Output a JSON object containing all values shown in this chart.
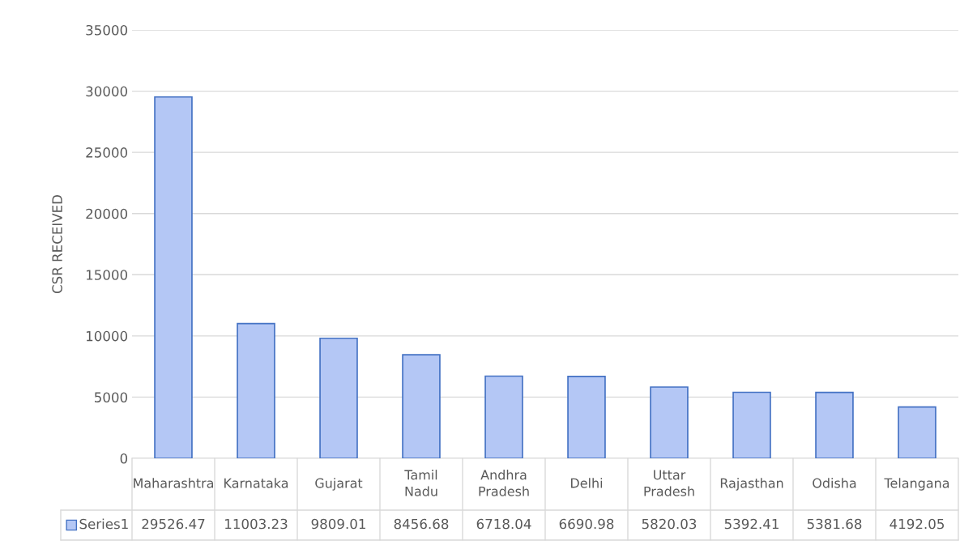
{
  "chart_data": {
    "type": "bar",
    "ylabel": "CSR RECEIVED",
    "categories": [
      "Maharashtra",
      "Karnataka",
      "Gujarat",
      "Tamil Nadu",
      "Andhra Pradesh",
      "Delhi",
      "Uttar Pradesh",
      "Rajasthan",
      "Odisha",
      "Telangana"
    ],
    "series": [
      {
        "name": "Series1",
        "color": "#b4c7f5",
        "values": [
          29526.47,
          11003.23,
          9809.01,
          8456.68,
          6718.04,
          6690.98,
          5820.03,
          5392.41,
          5381.68,
          4192.05
        ]
      }
    ],
    "ylim": [
      0,
      35000
    ],
    "yticks": [
      0,
      5000,
      10000,
      15000,
      20000,
      25000,
      30000,
      35000
    ],
    "grid": "y",
    "data_labels": true,
    "legend": "bottom"
  }
}
